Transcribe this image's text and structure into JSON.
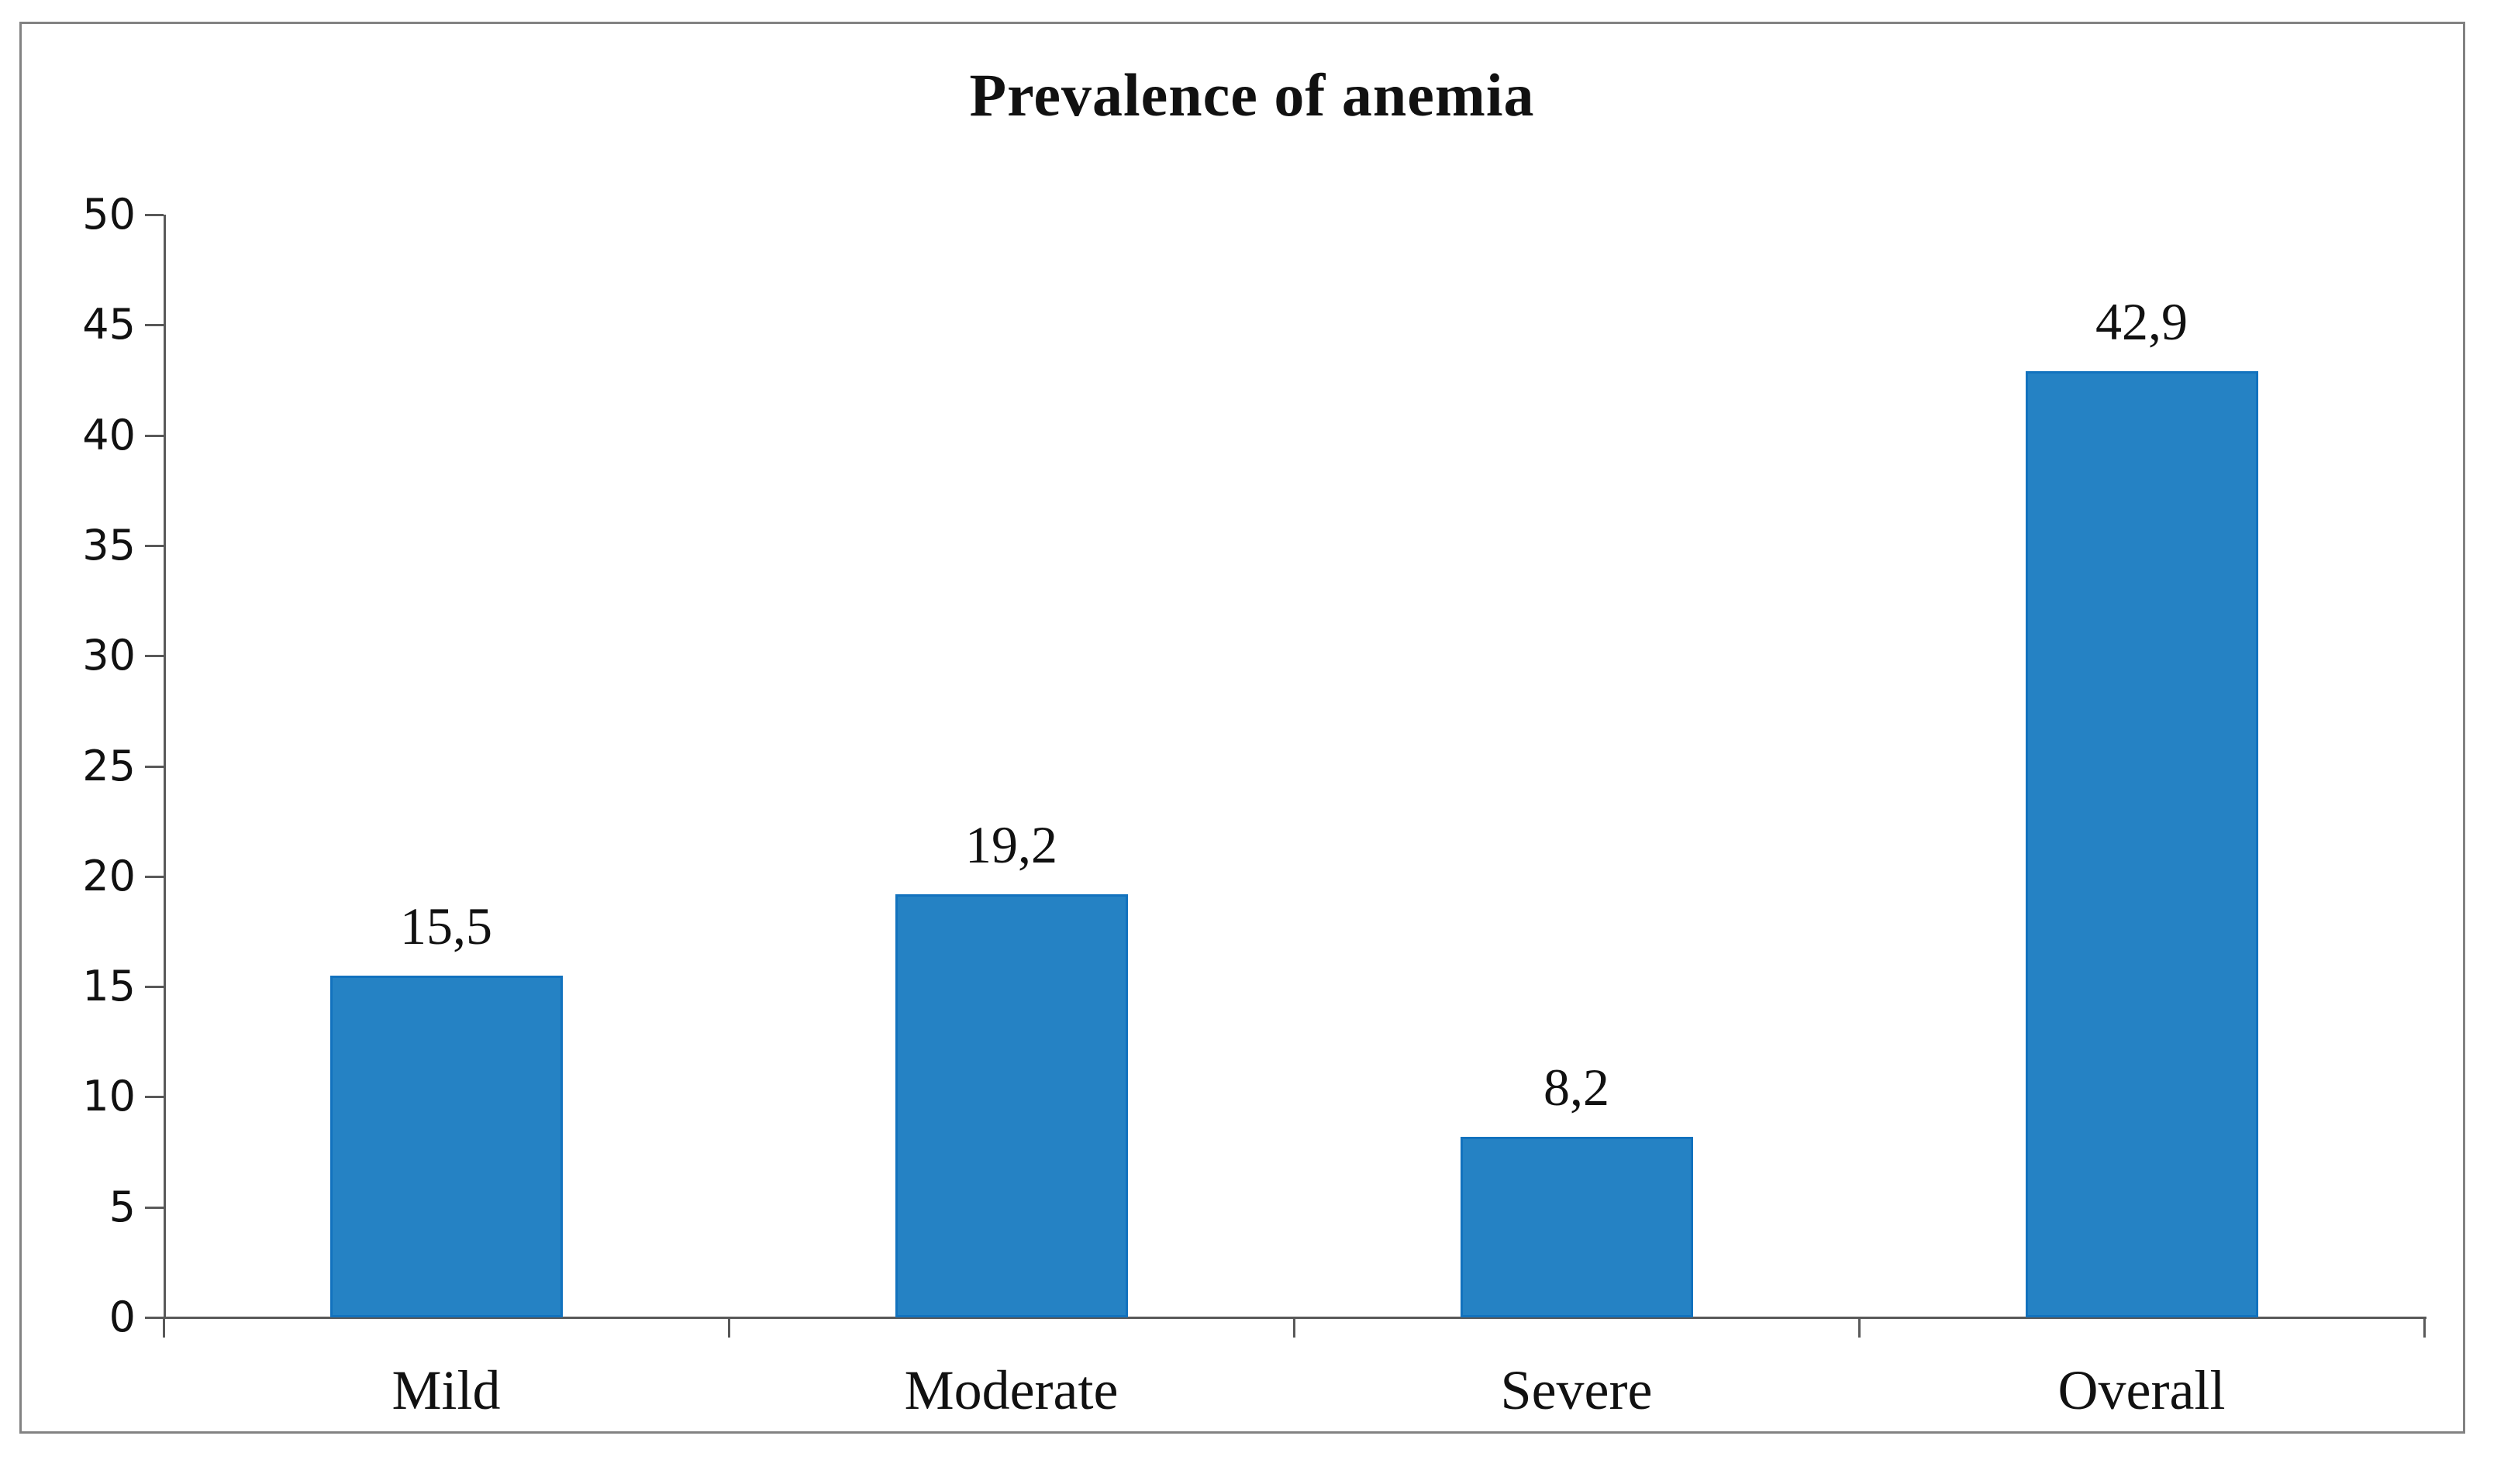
{
  "figure": {
    "background": "#FFFFFF",
    "border_color": "#828282"
  },
  "chart_data": {
    "type": "bar",
    "title": "Prevalence of anemia",
    "categories": [
      "Mild",
      "Moderate",
      "Severe",
      "Overall"
    ],
    "values": [
      15.5,
      19.2,
      8.2,
      42.9
    ],
    "value_labels": [
      "15,5",
      "19,2",
      "8,2",
      "42,9"
    ],
    "xlabel": "",
    "ylabel": "",
    "ylim": [
      0,
      50
    ],
    "ytick_step": 5,
    "ytick_labels": [
      "0",
      "5",
      "10",
      "15",
      "20",
      "25",
      "30",
      "35",
      "40",
      "45",
      "50"
    ],
    "grid": false,
    "legend": false,
    "bar_color": "#2582C4",
    "bar_border_color": "#1272BE",
    "axis_color": "#595959",
    "label_color": "#111111"
  }
}
